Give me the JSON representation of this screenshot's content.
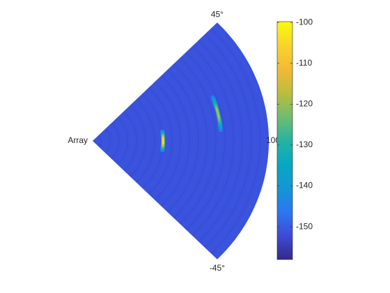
{
  "chart_data": {
    "type": "range-angle",
    "origin_label": "Array",
    "thetaticks": [
      {
        "value": 45,
        "label": "45°"
      },
      {
        "value": -45,
        "label": "-45°"
      }
    ],
    "rlim": [
      0,
      100
    ],
    "rticks": [
      100
    ],
    "background": -151,
    "targets": [
      {
        "range": 40,
        "angle": 0,
        "value": -104
      },
      {
        "range": 73,
        "angle": 13,
        "value": -117
      }
    ],
    "clim": [
      -158,
      -99.8
    ],
    "colorbar_ticks": [
      -100,
      -110,
      -120,
      -130,
      -140,
      -150
    ],
    "colormap": "parula"
  }
}
